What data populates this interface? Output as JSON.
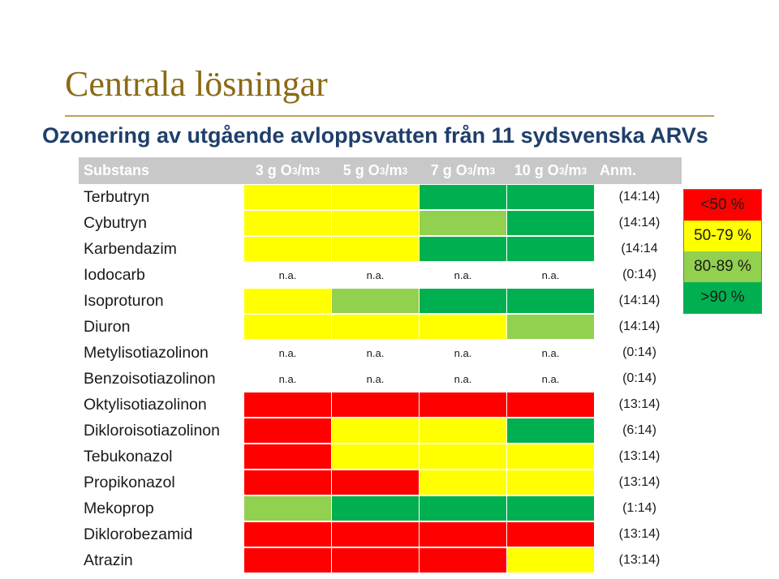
{
  "title": "Centrala lösningar",
  "subtitle": "Ozonering av utgående avloppsvatten från 11 sydsvenska ARVs",
  "colors": {
    "red": "#ff0000",
    "yellow": "#ffff00",
    "lightgreen": "#92d050",
    "green": "#00b050",
    "header_bg": "#c8c8c8",
    "title": "#8a6a16"
  },
  "header": {
    "substans": "Substans",
    "doses": [
      {
        "pre": "3 g O",
        "sub": "3",
        "mid": "/m",
        "sup": "3"
      },
      {
        "pre": "5 g O",
        "sub": "3",
        "mid": "/m",
        "sup": "3"
      },
      {
        "pre": "7 g O",
        "sub": "3",
        "mid": "/m",
        "sup": "3"
      },
      {
        "pre": "10 g O",
        "sub": "3",
        "mid": "/m",
        "sup": "3"
      }
    ],
    "anm": "Anm."
  },
  "legend": [
    {
      "label": "<50 %",
      "color": "#ff0000"
    },
    {
      "label": "50-79 %",
      "color": "#ffff00"
    },
    {
      "label": "80-89 %",
      "color": "#92d050"
    },
    {
      "label": ">90 %",
      "color": "#00b050"
    }
  ],
  "rows": [
    {
      "name": "Terbutryn",
      "cells": [
        "yellow",
        "yellow",
        "green",
        "green"
      ],
      "anm": "(14:14)"
    },
    {
      "name": "Cybutryn",
      "cells": [
        "yellow",
        "yellow",
        "lightgreen",
        "green"
      ],
      "anm": "(14:14)"
    },
    {
      "name": "Karbendazim",
      "cells": [
        "yellow",
        "yellow",
        "green",
        "green"
      ],
      "anm": "(14:14"
    },
    {
      "name": "Iodocarb",
      "cells": [
        "n.a.",
        "n.a.",
        "n.a.",
        "n.a."
      ],
      "anm": "(0:14)"
    },
    {
      "name": "Isoproturon",
      "cells": [
        "yellow",
        "lightgreen",
        "green",
        "green"
      ],
      "anm": "(14:14)"
    },
    {
      "name": "Diuron",
      "cells": [
        "yellow",
        "yellow",
        "yellow",
        "lightgreen"
      ],
      "anm": "(14:14)"
    },
    {
      "name": "Metylisotiazolinon",
      "cells": [
        "n.a.",
        "n.a.",
        "n.a.",
        "n.a."
      ],
      "anm": "(0:14)"
    },
    {
      "name": "Benzoisotiazolinon",
      "cells": [
        "n.a.",
        "n.a.",
        "n.a.",
        "n.a."
      ],
      "anm": "(0:14)"
    },
    {
      "name": "Oktylisotiazolinon",
      "cells": [
        "red",
        "red",
        "red",
        "red"
      ],
      "anm": "(13:14)"
    },
    {
      "name": "Dikloroisotiazolinon",
      "cells": [
        "red",
        "yellow",
        "yellow",
        "green"
      ],
      "anm": "(6:14)"
    },
    {
      "name": "Tebukonazol",
      "cells": [
        "red",
        "yellow",
        "yellow",
        "yellow"
      ],
      "anm": "(13:14)"
    },
    {
      "name": "Propikonazol",
      "cells": [
        "red",
        "red",
        "yellow",
        "yellow"
      ],
      "anm": "(13:14)"
    },
    {
      "name": "Mekoprop",
      "cells": [
        "lightgreen",
        "green",
        "green",
        "green"
      ],
      "anm": "(1:14)"
    },
    {
      "name": "Diklorobezamid",
      "cells": [
        "red",
        "red",
        "red",
        "red"
      ],
      "anm": "(13:14)"
    },
    {
      "name": "Atrazin",
      "cells": [
        "red",
        "red",
        "red",
        "yellow"
      ],
      "anm": "(13:14)"
    }
  ]
}
